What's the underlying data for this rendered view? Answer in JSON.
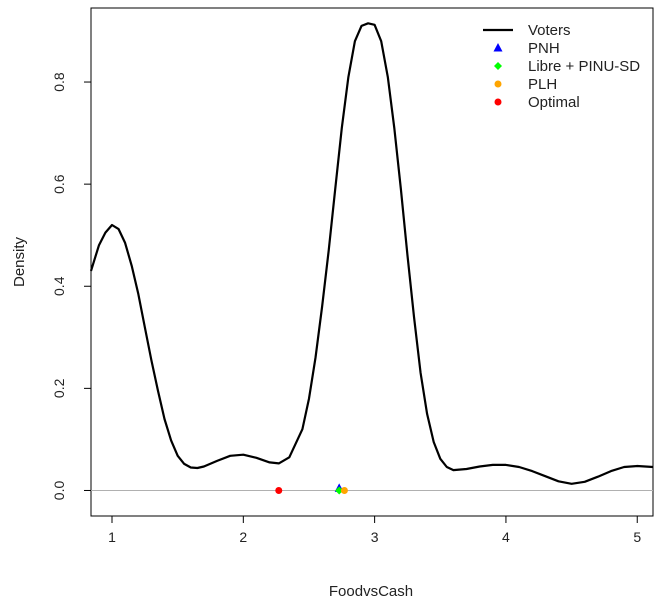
{
  "chart_data": {
    "type": "line",
    "title": "",
    "xlabel": "FoodvsCash",
    "ylabel": "Density",
    "xlim": [
      0.84,
      5.12
    ],
    "ylim": [
      -0.05,
      0.945
    ],
    "x_ticks": [
      1,
      2,
      3,
      4,
      5
    ],
    "y_ticks": [
      0.0,
      0.2,
      0.4,
      0.6,
      0.8
    ],
    "x_tick_labels": [
      "1",
      "2",
      "3",
      "4",
      "5"
    ],
    "y_tick_labels": [
      "0.0",
      "0.2",
      "0.4",
      "0.6",
      "0.8"
    ],
    "grid": false,
    "baseline": 0,
    "legend_position": "top-right",
    "series": [
      {
        "name": "Voters",
        "kind": "line",
        "color": "#000000",
        "x": [
          0.84,
          0.9,
          0.95,
          1.0,
          1.05,
          1.1,
          1.15,
          1.2,
          1.25,
          1.3,
          1.35,
          1.4,
          1.45,
          1.5,
          1.55,
          1.6,
          1.65,
          1.7,
          1.8,
          1.9,
          2.0,
          2.1,
          2.2,
          2.27,
          2.35,
          2.45,
          2.5,
          2.55,
          2.6,
          2.65,
          2.7,
          2.75,
          2.8,
          2.85,
          2.9,
          2.95,
          3.0,
          3.05,
          3.1,
          3.15,
          3.2,
          3.25,
          3.3,
          3.35,
          3.4,
          3.45,
          3.5,
          3.55,
          3.6,
          3.7,
          3.8,
          3.9,
          4.0,
          4.1,
          4.2,
          4.3,
          4.4,
          4.5,
          4.6,
          4.7,
          4.8,
          4.9,
          5.0,
          5.12
        ],
        "y": [
          0.43,
          0.48,
          0.505,
          0.52,
          0.512,
          0.485,
          0.44,
          0.385,
          0.32,
          0.255,
          0.195,
          0.14,
          0.098,
          0.068,
          0.052,
          0.045,
          0.044,
          0.047,
          0.058,
          0.068,
          0.07,
          0.064,
          0.055,
          0.053,
          0.065,
          0.12,
          0.18,
          0.26,
          0.36,
          0.47,
          0.59,
          0.71,
          0.81,
          0.88,
          0.91,
          0.915,
          0.912,
          0.88,
          0.81,
          0.71,
          0.59,
          0.46,
          0.34,
          0.23,
          0.15,
          0.095,
          0.062,
          0.046,
          0.04,
          0.042,
          0.047,
          0.05,
          0.05,
          0.046,
          0.038,
          0.028,
          0.018,
          0.013,
          0.017,
          0.027,
          0.038,
          0.046,
          0.048,
          0.046
        ]
      },
      {
        "name": "PNH",
        "kind": "point",
        "marker": "triangle",
        "color": "#0000ff",
        "x": [
          2.73
        ],
        "y": [
          0.004
        ]
      },
      {
        "name": "Libre + PINU-SD",
        "kind": "point",
        "marker": "diamond",
        "color": "#00ff00",
        "x": [
          2.73
        ],
        "y": [
          0.0
        ]
      },
      {
        "name": "PLH",
        "kind": "point",
        "marker": "circle",
        "color": "#ffa500",
        "x": [
          2.77
        ],
        "y": [
          0.0
        ]
      },
      {
        "name": "Optimal",
        "kind": "point",
        "marker": "circle",
        "color": "#ff0000",
        "x": [
          2.27
        ],
        "y": [
          0.0
        ]
      }
    ]
  }
}
